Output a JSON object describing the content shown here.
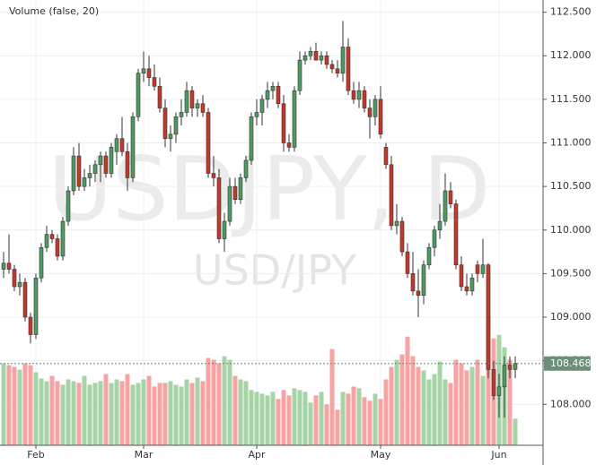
{
  "chart_data": {
    "type": "candlestick",
    "title": "Volume (false, 20)",
    "watermark": "USDJPY, D",
    "watermark_subtitle": "USD/JPY",
    "up_color": "#4f9a63",
    "down_color": "#c0392b",
    "volume_up_color": "#a6d4a6",
    "volume_down_color": "#f5a3a3",
    "ylim": [
      107.53,
      112.64
    ],
    "yticks": [
      {
        "value": 108,
        "label": "108.000"
      },
      {
        "value": 108.5,
        "label": "108.500"
      },
      {
        "value": 109,
        "label": "109.000"
      },
      {
        "value": 109.5,
        "label": "109.500"
      },
      {
        "value": 110,
        "label": "110.000"
      },
      {
        "value": 110.5,
        "label": "110.500"
      },
      {
        "value": 111,
        "label": "111.000"
      },
      {
        "value": 111.5,
        "label": "111.500"
      },
      {
        "value": 112,
        "label": "112.000"
      },
      {
        "value": 112.5,
        "label": "112.500"
      }
    ],
    "y2lim": [
      0,
      500
    ],
    "xticks": [
      {
        "value": 6,
        "label": "Feb"
      },
      {
        "value": 26,
        "label": "Mar"
      },
      {
        "value": 47,
        "label": "Apr"
      },
      {
        "value": 70,
        "label": "May"
      },
      {
        "value": 92,
        "label": "Jun"
      }
    ],
    "last_price": {
      "value": 108.468,
      "label": "108.468"
    },
    "grid": true,
    "open": [
      109.55,
      109.62,
      109.55,
      109.35,
      109.4,
      109.0,
      108.8,
      109.45,
      109.8,
      109.95,
      109.9,
      109.7,
      110.1,
      110.45,
      110.85,
      110.5,
      110.6,
      110.65,
      110.75,
      110.85,
      110.65,
      110.9,
      111.05,
      110.9,
      110.6,
      111.3,
      111.8,
      111.85,
      111.75,
      111.65,
      111.4,
      111.05,
      111.1,
      111.3,
      111.35,
      111.6,
      111.4,
      111.45,
      111.35,
      110.65,
      110.6,
      109.9,
      110.1,
      110.5,
      110.35,
      110.6,
      110.8,
      111.3,
      111.35,
      111.5,
      111.6,
      111.65,
      111.45,
      111.0,
      110.95,
      111.6,
      111.95,
      112.0,
      112.05,
      111.95,
      112.0,
      111.9,
      111.85,
      111.8,
      112.1,
      111.6,
      111.5,
      111.6,
      111.4,
      111.3,
      111.5,
      110.95,
      110.75,
      110.05,
      110.1,
      109.75,
      109.5,
      109.3,
      109.25,
      109.6,
      109.8,
      110.0,
      110.1,
      110.45,
      110.3,
      109.6,
      109.35,
      109.3,
      109.6,
      109.5,
      109.6,
      108.4,
      108.1,
      108.2,
      108.45,
      108.4
    ],
    "high": [
      109.75,
      109.95,
      109.6,
      109.5,
      109.45,
      109.05,
      109.5,
      109.85,
      110.05,
      110.0,
      109.95,
      110.15,
      110.5,
      110.95,
      111.0,
      110.7,
      110.75,
      110.8,
      110.9,
      110.9,
      111.0,
      111.1,
      111.3,
      111.0,
      111.35,
      111.85,
      112.05,
      112.0,
      111.9,
      111.75,
      111.5,
      111.2,
      111.35,
      111.5,
      111.7,
      111.65,
      111.5,
      111.55,
      111.4,
      110.85,
      110.7,
      110.2,
      110.6,
      110.6,
      110.65,
      110.85,
      111.35,
      111.5,
      111.55,
      111.7,
      111.7,
      111.7,
      111.55,
      111.1,
      111.65,
      112.05,
      112.05,
      112.1,
      112.15,
      112.05,
      112.05,
      111.95,
      111.95,
      112.4,
      112.2,
      111.7,
      111.7,
      111.65,
      111.5,
      111.55,
      111.65,
      111.0,
      110.85,
      110.3,
      110.15,
      109.85,
      109.75,
      109.55,
      109.65,
      109.85,
      110.05,
      110.3,
      110.65,
      110.55,
      110.35,
      109.7,
      109.5,
      109.5,
      109.65,
      109.9,
      109.62,
      108.5,
      108.35,
      108.55,
      108.55,
      108.55
    ],
    "low": [
      109.45,
      109.5,
      109.3,
      109.25,
      108.95,
      108.7,
      108.75,
      109.4,
      109.75,
      109.85,
      109.65,
      109.65,
      110.05,
      110.4,
      110.45,
      110.45,
      110.5,
      110.55,
      110.55,
      110.6,
      110.6,
      110.75,
      110.85,
      110.45,
      110.55,
      111.25,
      111.7,
      111.65,
      111.6,
      111.35,
      110.95,
      110.9,
      111.0,
      111.2,
      111.3,
      111.3,
      111.3,
      111.3,
      110.6,
      110.5,
      109.85,
      109.75,
      110.05,
      110.3,
      110.3,
      110.55,
      110.75,
      111.2,
      111.2,
      111.4,
      111.5,
      111.4,
      110.9,
      110.9,
      110.9,
      111.55,
      111.9,
      111.95,
      111.95,
      111.9,
      111.85,
      111.8,
      111.75,
      111.7,
      111.55,
      111.45,
      111.4,
      111.35,
      111.05,
      111.2,
      111.05,
      110.7,
      110.0,
      109.95,
      109.7,
      109.45,
      109.25,
      109.0,
      109.15,
      109.55,
      109.7,
      109.9,
      110.05,
      110.25,
      109.55,
      109.3,
      109.25,
      109.25,
      109.4,
      109.45,
      108.3,
      108.05,
      107.85,
      107.85,
      108.3,
      108.3
    ],
    "close": [
      109.62,
      109.55,
      109.35,
      109.4,
      109.0,
      108.8,
      109.45,
      109.8,
      109.95,
      109.9,
      109.7,
      110.1,
      110.45,
      110.85,
      110.5,
      110.6,
      110.65,
      110.75,
      110.85,
      110.65,
      110.95,
      111.05,
      110.9,
      110.6,
      111.3,
      111.8,
      111.85,
      111.75,
      111.65,
      111.4,
      111.05,
      111.1,
      111.3,
      111.35,
      111.6,
      111.4,
      111.45,
      111.35,
      110.65,
      110.6,
      109.9,
      110.1,
      110.5,
      110.35,
      110.6,
      110.8,
      111.3,
      111.35,
      111.5,
      111.6,
      111.65,
      111.45,
      111.0,
      110.95,
      111.6,
      111.95,
      112.0,
      112.05,
      111.95,
      112.0,
      111.9,
      111.85,
      111.8,
      112.1,
      111.6,
      111.5,
      111.6,
      111.4,
      111.3,
      111.5,
      111.1,
      110.75,
      110.05,
      110.1,
      109.75,
      109.5,
      109.3,
      109.25,
      109.6,
      109.8,
      110.0,
      110.1,
      110.45,
      110.3,
      109.6,
      109.35,
      109.3,
      109.45,
      109.5,
      109.6,
      108.4,
      108.1,
      108.2,
      108.45,
      108.4,
      108.47
    ],
    "volume": [
      92,
      90,
      88,
      85,
      92,
      90,
      82,
      75,
      72,
      78,
      72,
      68,
      74,
      72,
      70,
      78,
      68,
      70,
      72,
      80,
      70,
      74,
      72,
      80,
      68,
      70,
      74,
      78,
      66,
      70,
      70,
      72,
      68,
      66,
      74,
      70,
      76,
      72,
      98,
      96,
      92,
      100,
      96,
      78,
      74,
      72,
      62,
      60,
      58,
      56,
      60,
      52,
      62,
      56,
      64,
      62,
      60,
      48,
      56,
      60,
      46,
      108,
      40,
      60,
      58,
      66,
      64,
      54,
      50,
      58,
      52,
      74,
      88,
      96,
      102,
      122,
      100,
      88,
      84,
      74,
      80,
      94,
      74,
      70,
      96,
      92,
      84,
      88,
      96,
      78,
      145,
      120,
      124,
      110,
      96,
      30
    ]
  }
}
